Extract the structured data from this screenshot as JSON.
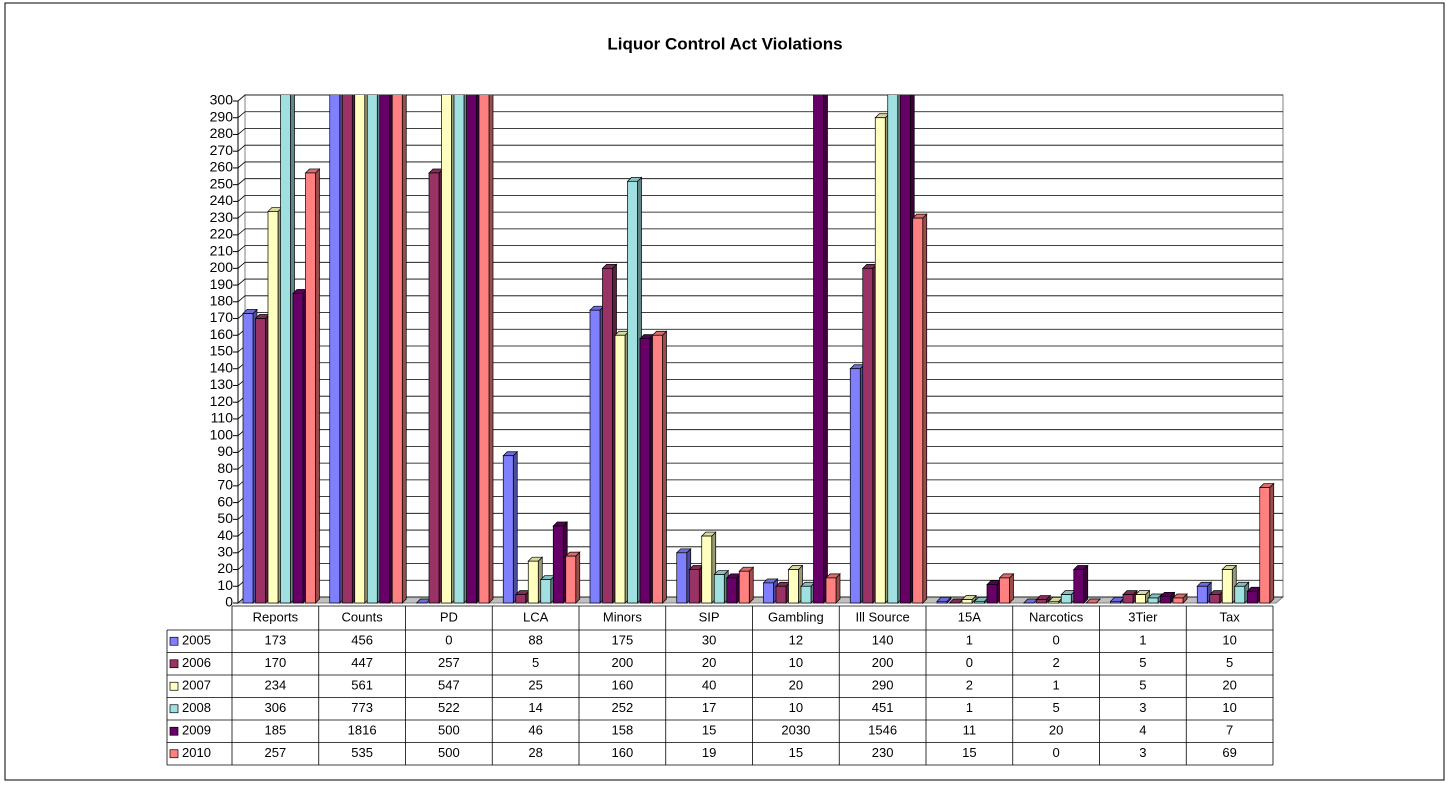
{
  "chart_data": {
    "type": "bar3d",
    "title": "Liquor Control Act Violations",
    "categories": [
      "Reports",
      "Counts",
      "PD",
      "LCA",
      "Minors",
      "SIP",
      "Gambling",
      "Ill Source",
      "15A",
      "Narcotics",
      "3Tier",
      "Tax"
    ],
    "series": [
      {
        "name": "2005",
        "color": "#8080ff",
        "values": [
          173,
          456,
          0,
          88,
          175,
          30,
          12,
          140,
          1,
          0,
          1,
          10
        ]
      },
      {
        "name": "2006",
        "color": "#993366",
        "values": [
          170,
          447,
          257,
          5,
          200,
          20,
          10,
          200,
          0,
          2,
          5,
          5
        ]
      },
      {
        "name": "2007",
        "color": "#ffffc0",
        "values": [
          234,
          561,
          547,
          25,
          160,
          40,
          20,
          290,
          2,
          1,
          5,
          20
        ]
      },
      {
        "name": "2008",
        "color": "#a0e0e0",
        "values": [
          306,
          773,
          522,
          14,
          252,
          17,
          10,
          451,
          1,
          5,
          3,
          10
        ]
      },
      {
        "name": "2009",
        "color": "#660066",
        "values": [
          185,
          1816,
          500,
          46,
          158,
          15,
          2030,
          1546,
          11,
          20,
          4,
          7
        ]
      },
      {
        "name": "2010",
        "color": "#ff8080",
        "values": [
          257,
          535,
          500,
          28,
          160,
          19,
          15,
          230,
          15,
          0,
          3,
          69
        ]
      }
    ],
    "ylim": [
      0,
      300
    ],
    "yticks": [
      0,
      10,
      20,
      30,
      40,
      50,
      60,
      70,
      80,
      90,
      100,
      110,
      120,
      130,
      140,
      150,
      160,
      170,
      180,
      190,
      200,
      210,
      220,
      230,
      240,
      250,
      260,
      270,
      280,
      290,
      300
    ],
    "grid": true
  }
}
